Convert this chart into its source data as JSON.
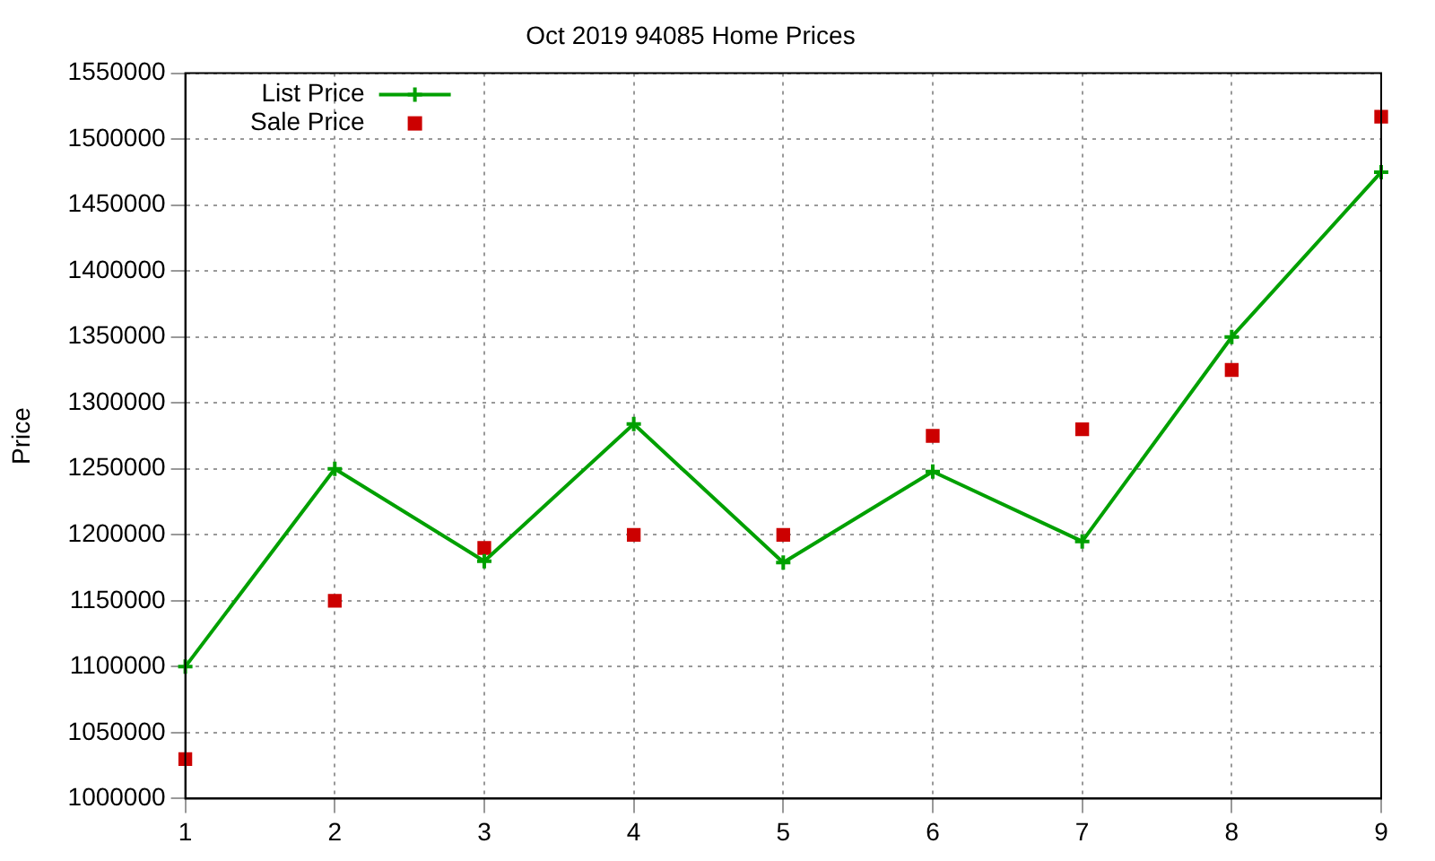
{
  "chart_data": {
    "type": "line",
    "title": "Oct 2019 94085 Home Prices",
    "ylabel": "Price",
    "x": [
      1,
      2,
      3,
      4,
      5,
      6,
      7,
      8,
      9
    ],
    "xlim": [
      1,
      9
    ],
    "xticks": [
      1,
      2,
      3,
      4,
      5,
      6,
      7,
      8,
      9
    ],
    "ylim": [
      1000000,
      1550000
    ],
    "yticks": [
      1000000,
      1050000,
      1100000,
      1150000,
      1200000,
      1250000,
      1300000,
      1350000,
      1400000,
      1450000,
      1500000,
      1550000
    ],
    "grid": true,
    "legend": "top left",
    "series": [
      {
        "name": "List Price",
        "color": "#00a000",
        "marker": "cross",
        "line_style": "solid",
        "values": [
          1100000,
          1250000,
          1180000,
          1284000,
          1179000,
          1248000,
          1195000,
          1350000,
          1475000
        ]
      },
      {
        "name": "Sale Price",
        "type": "scatter",
        "color": "#cc0000",
        "marker": "square",
        "values": [
          1030000,
          1150000,
          1190000,
          1200000,
          1200000,
          1275000,
          1280000,
          1325000,
          1517000
        ]
      }
    ]
  }
}
